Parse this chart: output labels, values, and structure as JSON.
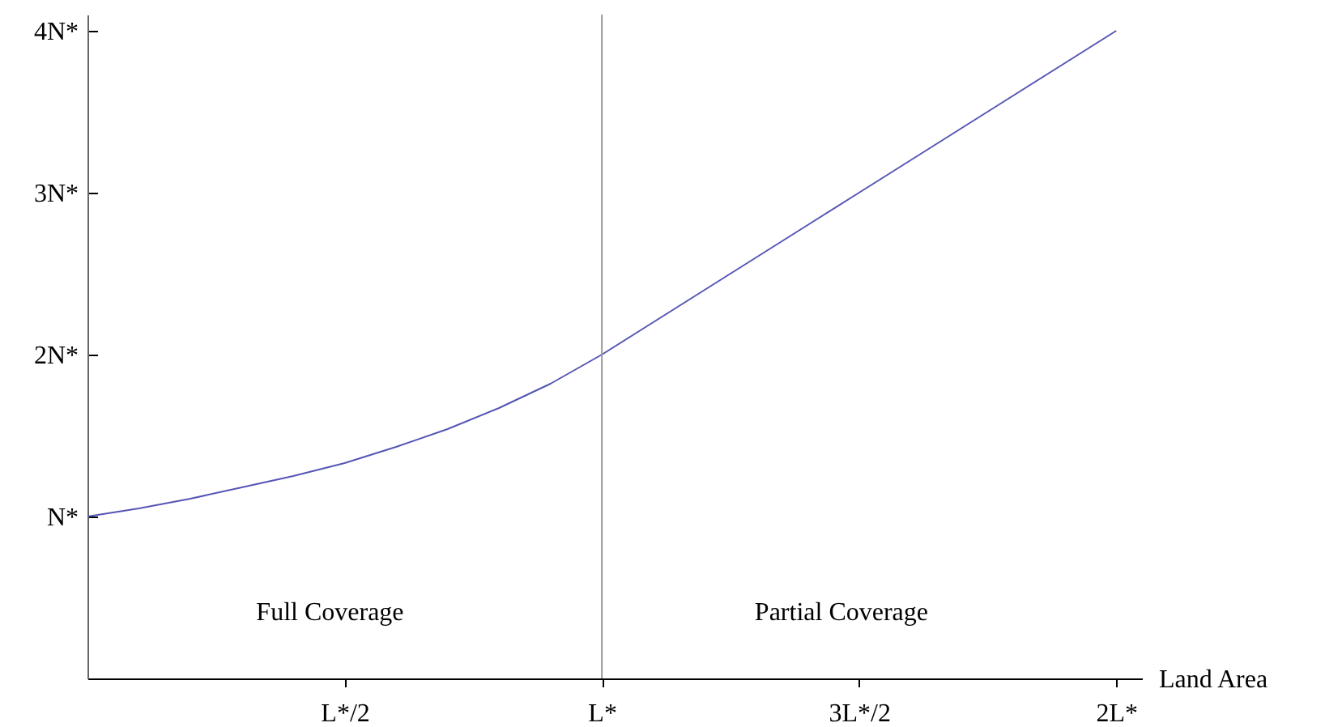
{
  "chart_data": {
    "type": "line",
    "xlabel": "Land Area",
    "categories": [
      null,
      null,
      null,
      null,
      null,
      "L*/2",
      null,
      null,
      null,
      null,
      "L*",
      null,
      null,
      null,
      null,
      "3L*/2",
      null,
      null,
      null,
      null,
      "2L*"
    ],
    "series": [
      {
        "color": "#5555b5",
        "values": [
          1,
          1.05,
          1.11,
          1.18,
          1.25,
          1.33,
          1.43,
          1.54,
          1.67,
          1.82,
          2,
          2.2,
          2.4,
          2.6,
          2.8,
          3,
          3.2,
          3.4,
          3.6,
          3.8,
          4
        ]
      }
    ],
    "ylim": [
      0,
      4.1
    ],
    "yticks": [
      {
        "value": 1,
        "label": "N*"
      },
      {
        "value": 2,
        "label": "2N*"
      },
      {
        "value": 3,
        "label": "3N*"
      },
      {
        "value": 4,
        "label": "4N*"
      }
    ],
    "ref_lines": [
      {
        "axis": "x",
        "value": "L*",
        "color": "#999999"
      }
    ],
    "annotations": [
      "Full Coverage",
      "Partial Coverage"
    ],
    "grid": false,
    "marker": "none",
    "line_style": "solid"
  }
}
